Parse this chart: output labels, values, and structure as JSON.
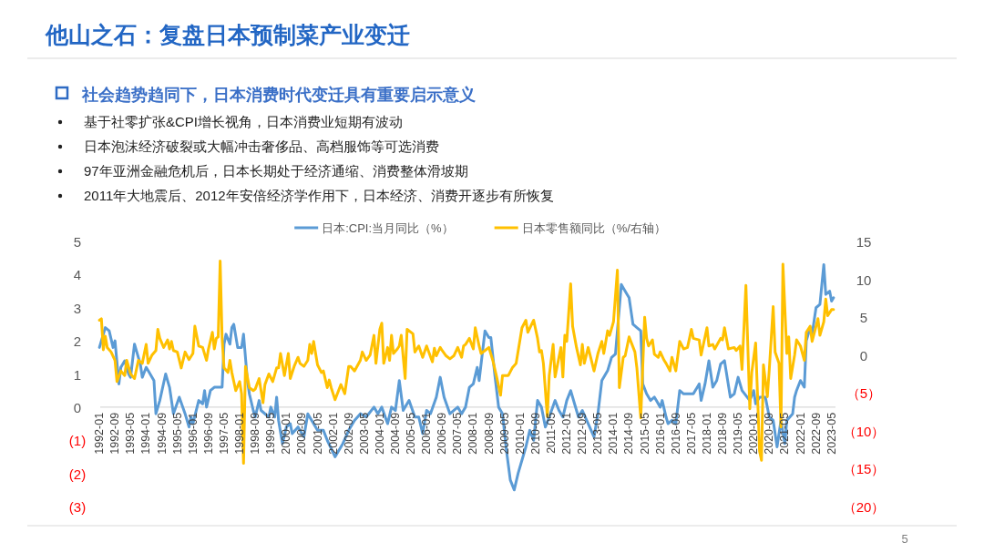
{
  "chart_data": {
    "type": "line",
    "title": "他山之石：复盘日本预制菜产业变迁",
    "subtitle": "社会趋势趋同下，日本消费时代变迁具有重要启示意义",
    "annotations": [
      "基于社零扩张&CPI增长视角，日本消费业短期有波动",
      "日本泡沫经济破裂或大幅冲击奢侈品、高档服饰等可选消费",
      "97年亚洲金融危机后，日本长期处于经济通缩、消费整体滑坡期",
      "2011年大地震后、2012年安倍经济学作用下，日本经济、消费开逐步有所恢复",
      "5"
    ],
    "legend": "top",
    "line_style": "solid",
    "xlim": [
      "1991-12",
      "2023-07"
    ],
    "xticks": [
      "1992-01",
      "1992-09",
      "1993-05",
      "1994-01",
      "1994-09",
      "1995-05",
      "1996-01",
      "1996-09",
      "1997-05",
      "1998-01",
      "1998-09",
      "1999-05",
      "2000-01",
      "2000-09",
      "2001-05",
      "2002-01",
      "2002-09",
      "2003-05",
      "2004-01",
      "2004-09",
      "2005-05",
      "2006-01",
      "2006-09",
      "2007-05",
      "2008-01",
      "2008-09",
      "2009-05",
      "2010-01",
      "2010-09",
      "2011-05",
      "2012-01",
      "2012-09",
      "2013-05",
      "2014-01",
      "2014-09",
      "2015-05",
      "2016-01",
      "2016-09",
      "2017-05",
      "2018-01",
      "2018-09",
      "2019-05",
      "2020-01",
      "2020-09",
      "2021-05",
      "2022-01",
      "2022-09",
      "2023-05"
    ],
    "ylim": [
      -3,
      5
    ],
    "yticks": [
      5,
      4,
      3,
      2,
      1,
      0,
      {
        "value": -1,
        "label": "(1)"
      },
      {
        "value": -2,
        "label": "(2)"
      },
      {
        "value": -3,
        "label": "(3)"
      }
    ],
    "y2lim": [
      -20,
      15
    ],
    "y2ticks": [
      15,
      10,
      5,
      0,
      {
        "value": -5,
        "label": "（5）"
      },
      {
        "value": -10,
        "label": "（10）"
      },
      {
        "value": -15,
        "label": "（15）"
      },
      {
        "value": -20,
        "label": "（20）"
      }
    ],
    "series": [
      {
        "name": "日本:CPI:当月同比（%）",
        "color": "#5b9bd5",
        "x": [
          "1992-01",
          "1992-04",
          "1992-06",
          "1992-08",
          "1992-09",
          "1992-11",
          "1992-12",
          "1993-02",
          "1993-04",
          "1993-05",
          "1993-07",
          "1993-09",
          "1993-10",
          "1993-11",
          "1994-01",
          "1994-02",
          "1994-05",
          "1994-06",
          "1994-08",
          "1994-11",
          "1995-01",
          "1995-03",
          "1995-06",
          "1995-09",
          "1995-11",
          "1995-12",
          "1996-01",
          "1996-04",
          "1996-06",
          "1996-07",
          "1996-08",
          "1996-10",
          "1996-12",
          "1997-03",
          "1997-04",
          "1997-05",
          "1997-06",
          "1997-08",
          "1997-09",
          "1997-10",
          "1997-12",
          "1998-02",
          "1998-03",
          "1998-05",
          "1998-06",
          "1998-08",
          "1998-09",
          "1998-11",
          "1998-12",
          "1999-04",
          "1999-05",
          "1999-07",
          "1999-08",
          "1999-09",
          "1999-11",
          "2000-01",
          "2000-03",
          "2000-04",
          "2000-07",
          "2000-10",
          "2000-12",
          "2001-02",
          "2001-05",
          "2001-08",
          "2001-10",
          "2002-02",
          "2002-06",
          "2002-09",
          "2002-12",
          "2003-03",
          "2003-06",
          "2003-10",
          "2003-12",
          "2004-02",
          "2004-05",
          "2004-07",
          "2004-09",
          "2004-11",
          "2005-01",
          "2005-04",
          "2005-07",
          "2005-09",
          "2005-11",
          "2006-01",
          "2006-03",
          "2006-06",
          "2006-08",
          "2006-10",
          "2007-01",
          "2007-05",
          "2007-07",
          "2007-09",
          "2007-11",
          "2008-01",
          "2008-03",
          "2008-04",
          "2008-07",
          "2008-09",
          "2008-10",
          "2008-12",
          "2009-02",
          "2009-04",
          "2009-06",
          "2009-08",
          "2009-10",
          "2009-12",
          "2010-04",
          "2010-06",
          "2010-08",
          "2010-10",
          "2010-12",
          "2011-02",
          "2011-04",
          "2011-07",
          "2011-09",
          "2011-11",
          "2012-01",
          "2012-03",
          "2012-05",
          "2012-07",
          "2012-09",
          "2012-12",
          "2013-03",
          "2013-05",
          "2013-07",
          "2013-10",
          "2013-12",
          "2014-02",
          "2014-05",
          "2014-06",
          "2014-08",
          "2014-09",
          "2014-11",
          "2015-01",
          "2015-03",
          "2015-04",
          "2015-06",
          "2015-08",
          "2015-10",
          "2015-11",
          "2016-01",
          "2016-02",
          "2016-04",
          "2016-05",
          "2016-07",
          "2016-09",
          "2016-11",
          "2017-01",
          "2017-04",
          "2017-06",
          "2017-09",
          "2017-10",
          "2017-12",
          "2018-02",
          "2018-04",
          "2018-06",
          "2018-08",
          "2018-10",
          "2019-01",
          "2019-03",
          "2019-05",
          "2019-07",
          "2019-11",
          "2020-01",
          "2020-02",
          "2020-04",
          "2020-07",
          "2020-09",
          "2020-11",
          "2021-01",
          "2021-03",
          "2021-05",
          "2021-06",
          "2021-09",
          "2021-10",
          "2021-11",
          "2022-01",
          "2022-03",
          "2022-04",
          "2022-06",
          "2022-07",
          "2022-09",
          "2022-11",
          "2022-12",
          "2023-01",
          "2023-02",
          "2023-04",
          "2023-05",
          "2023-06"
        ],
        "values": [
          1.8,
          2.4,
          2.3,
          1.8,
          2.0,
          0.7,
          1.2,
          1.4,
          1.0,
          0.9,
          1.9,
          1.5,
          1.3,
          0.9,
          1.2,
          1.1,
          0.8,
          -0.2,
          0.2,
          1.0,
          0.6,
          -0.2,
          0.3,
          -0.2,
          -0.6,
          -0.3,
          -0.5,
          0.2,
          0.1,
          0.5,
          0.0,
          0.5,
          0.6,
          0.6,
          0.6,
          1.9,
          2.2,
          1.9,
          2.4,
          2.5,
          1.8,
          1.8,
          2.2,
          0.8,
          0.4,
          -0.1,
          -0.3,
          0.2,
          -0.1,
          -0.3,
          0.0,
          -0.3,
          0.3,
          -0.4,
          -1.1,
          -0.6,
          -0.5,
          -0.8,
          -0.6,
          -0.9,
          -0.2,
          -0.4,
          -0.7,
          -0.7,
          -1.0,
          -1.5,
          -1.1,
          -0.7,
          -0.4,
          -0.2,
          -0.3,
          0.0,
          -0.2,
          0.0,
          -0.5,
          0.0,
          -0.1,
          0.8,
          -0.1,
          0.2,
          -0.3,
          -0.3,
          -0.8,
          -0.1,
          -0.2,
          0.3,
          0.9,
          0.3,
          -0.2,
          0.0,
          -0.2,
          0.0,
          0.6,
          0.7,
          1.2,
          0.8,
          2.3,
          2.1,
          2.1,
          1.0,
          0.0,
          -0.2,
          -1.3,
          -2.2,
          -2.5,
          -2.0,
          -1.2,
          -0.7,
          -1.0,
          0.2,
          0.0,
          -0.6,
          -0.3,
          0.2,
          -0.1,
          -0.3,
          0.2,
          0.5,
          0.1,
          -0.3,
          -0.1,
          -0.5,
          -0.9,
          -0.2,
          0.8,
          1.1,
          1.5,
          1.6,
          3.7,
          3.6,
          3.4,
          3.3,
          2.5,
          2.4,
          2.3,
          0.7,
          0.4,
          0.2,
          0.3,
          0.2,
          0.0,
          0.2,
          -0.3,
          -0.5,
          -0.4,
          -0.5,
          0.5,
          0.4,
          0.4,
          0.4,
          0.7,
          0.2,
          0.7,
          1.4,
          0.6,
          0.8,
          1.3,
          1.4,
          0.3,
          0.4,
          0.9,
          0.5,
          0.2,
          0.5,
          0.1,
          0.3,
          0.3,
          -0.3,
          -0.4,
          -1.2,
          -0.4,
          -1.1,
          -0.4,
          -0.2,
          0.3,
          0.5,
          0.8,
          0.6,
          2.0,
          2.4,
          2.2,
          3.0,
          3.1,
          3.7,
          4.3,
          3.4,
          3.5,
          3.2,
          3.3
        ]
      },
      {
        "name": "日本零售额同比（%/右轴）",
        "color": "#ffc000",
        "axis": "y2",
        "x": [
          "1992-01",
          "1992-02",
          "1992-03",
          "1992-04",
          "1992-05",
          "1992-07",
          "1992-09",
          "1992-10",
          "1992-12",
          "1993-02",
          "1993-03",
          "1993-05",
          "1993-07",
          "1993-09",
          "1993-11",
          "1994-01",
          "1994-02",
          "1994-04",
          "1994-06",
          "1994-07",
          "1994-08",
          "1994-10",
          "1994-12",
          "1995-01",
          "1995-02",
          "1995-03",
          "1995-05",
          "1995-07",
          "1995-09",
          "1995-11",
          "1996-01",
          "1996-02",
          "1996-04",
          "1996-06",
          "1996-08",
          "1996-09",
          "1996-11",
          "1996-12",
          "1997-01",
          "1997-02",
          "1997-03",
          "1997-04",
          "1997-05",
          "1997-07",
          "1997-08",
          "1997-09",
          "1997-11",
          "1998-01",
          "1998-02",
          "1998-03",
          "1998-04",
          "1998-06",
          "1998-08",
          "1998-09",
          "1998-11",
          "1999-01",
          "1999-02",
          "1999-04",
          "1999-06",
          "1999-08",
          "1999-09",
          "1999-10",
          "1999-12",
          "2000-02",
          "2000-03",
          "2000-05",
          "2000-07",
          "2000-08",
          "2000-10",
          "2000-12",
          "2001-01",
          "2001-02",
          "2001-03",
          "2001-05",
          "2001-07",
          "2001-08",
          "2001-10",
          "2001-11",
          "2001-12",
          "2002-02",
          "2002-05",
          "2002-07",
          "2002-09",
          "2002-10",
          "2002-12",
          "2003-03",
          "2003-04",
          "2003-06",
          "2003-08",
          "2003-10",
          "2003-11",
          "2004-01",
          "2004-02",
          "2004-03",
          "2004-05",
          "2004-06",
          "2004-07",
          "2004-08",
          "2004-10",
          "2004-11",
          "2004-12",
          "2005-02",
          "2005-03",
          "2005-06",
          "2005-07",
          "2005-09",
          "2005-11",
          "2006-01",
          "2006-04",
          "2006-05",
          "2006-06",
          "2006-08",
          "2006-09",
          "2006-11",
          "2007-01",
          "2007-03",
          "2007-05",
          "2007-07",
          "2007-08",
          "2007-09",
          "2007-11",
          "2008-01",
          "2008-02",
          "2008-04",
          "2008-05",
          "2008-07",
          "2008-09",
          "2008-11",
          "2009-01",
          "2009-03",
          "2009-04",
          "2009-07",
          "2009-09",
          "2009-11",
          "2010-02",
          "2010-04",
          "2010-05",
          "2010-08",
          "2010-10",
          "2010-11",
          "2010-12",
          "2011-01",
          "2011-03",
          "2011-04",
          "2011-06",
          "2011-07",
          "2011-10",
          "2011-11",
          "2011-12",
          "2012-01",
          "2012-03",
          "2012-04",
          "2012-06",
          "2012-08",
          "2012-09",
          "2012-10",
          "2012-12",
          "2013-03",
          "2013-05",
          "2013-07",
          "2013-08",
          "2013-10",
          "2013-11",
          "2014-01",
          "2014-03",
          "2014-04",
          "2014-06",
          "2014-07",
          "2014-09",
          "2014-12",
          "2015-01",
          "2015-03",
          "2015-05",
          "2015-06",
          "2015-07",
          "2015-09",
          "2015-10",
          "2015-12",
          "2016-01",
          "2016-03",
          "2016-04",
          "2016-06",
          "2016-07",
          "2016-09",
          "2016-11",
          "2017-01",
          "2017-03",
          "2017-05",
          "2017-06",
          "2017-09",
          "2017-10",
          "2018-01",
          "2018-02",
          "2018-04",
          "2018-05",
          "2018-08",
          "2018-09",
          "2018-10",
          "2018-12",
          "2019-03",
          "2019-04",
          "2019-06",
          "2019-07",
          "2019-09",
          "2019-11",
          "2019-12",
          "2020-02",
          "2020-04",
          "2020-05",
          "2020-06",
          "2020-08",
          "2020-09",
          "2020-11",
          "2020-12",
          "2021-02",
          "2021-03",
          "2021-04",
          "2021-06",
          "2021-07",
          "2021-08",
          "2021-10",
          "2021-11",
          "2022-01",
          "2022-03",
          "2022-04",
          "2022-06",
          "2022-07",
          "2022-10",
          "2022-11",
          "2023-01",
          "2023-02",
          "2023-03",
          "2023-05",
          "2023-06"
        ],
        "values": [
          4.6,
          4.8,
          0.7,
          2.5,
          1.0,
          0.4,
          -0.7,
          -3.5,
          -2.1,
          -2.7,
          -0.7,
          -2.5,
          -3.1,
          -0.7,
          -1.1,
          1.4,
          -1.1,
          0.0,
          0.6,
          3.4,
          2.2,
          1.0,
          2.0,
          0.8,
          1.8,
          0.6,
          0.4,
          -1.7,
          0.4,
          -0.6,
          0.2,
          3.8,
          1.2,
          1.0,
          -0.7,
          0.8,
          3.0,
          0.8,
          2.2,
          2.4,
          12.4,
          2.2,
          -1.7,
          -2.3,
          -0.7,
          -2.3,
          -4.7,
          -3.5,
          -5.1,
          -14.3,
          -1.5,
          -4.3,
          -4.7,
          -4.5,
          -3.1,
          -6.3,
          -3.9,
          -2.5,
          -3.5,
          -1.7,
          -1.7,
          0.2,
          -2.7,
          0.2,
          -3.1,
          -1.5,
          -0.3,
          -1.1,
          -1.5,
          -0.7,
          1.4,
          0.2,
          1.8,
          -1.3,
          -2.3,
          -2.1,
          -4.3,
          -3.3,
          -4.3,
          -5.9,
          -3.9,
          -5.1,
          -1.5,
          -1.5,
          -2.1,
          -0.7,
          0.4,
          -0.7,
          0.0,
          2.6,
          -1.1,
          3.4,
          4.2,
          -1.1,
          1.0,
          -0.7,
          2.6,
          0.2,
          0.8,
          1.2,
          2.6,
          -3.1,
          3.4,
          2.8,
          0.4,
          1.2,
          -0.3,
          1.2,
          -0.9,
          0.9,
          -0.1,
          1.0,
          0.6,
          -0.1,
          -0.5,
          -0.1,
          1.0,
          -0.3,
          1.2,
          1.4,
          2.2,
          0.8,
          3.6,
          1.2,
          0.2,
          0.6,
          1.0,
          -0.7,
          -2.9,
          -5.3,
          -2.7,
          -2.7,
          -1.7,
          -1.1,
          3.6,
          4.6,
          3.0,
          4.6,
          2.2,
          0.4,
          0.6,
          -1.1,
          -8.1,
          -2.7,
          1.4,
          -2.9,
          1.0,
          -2.9,
          2.6,
          1.8,
          9.4,
          3.8,
          1.0,
          -1.3,
          1.4,
          -1.1,
          1.0,
          -2.1,
          0.2,
          1.8,
          0.2,
          3.2,
          2.6,
          4.4,
          11.2,
          -4.3,
          -0.3,
          -0.1,
          2.4,
          0.4,
          -1.7,
          -8.3,
          5.0,
          2.2,
          1.2,
          2.0,
          0.1,
          -0.3,
          0.4,
          -0.7,
          -1.1,
          -2.1,
          -0.3,
          -2.1,
          1.8,
          0.8,
          1.0,
          3.4,
          2.2,
          2.0,
          0.0,
          3.6,
          1.2,
          1.4,
          0.8,
          2.2,
          2.0,
          3.6,
          0.8,
          1.0,
          0.6,
          1.2,
          -1.9,
          9.2,
          -7.1,
          -2.3,
          1.6,
          -12.7,
          -13.9,
          -1.3,
          -5.5,
          -1.9,
          6.4,
          0.4,
          -1.1,
          -9.5,
          12.0,
          0.2,
          2.4,
          -3.1,
          0.0,
          2.0,
          1.2,
          -0.7,
          3.0,
          3.8,
          1.8,
          4.8,
          2.6,
          4.4,
          7.4,
          5.2,
          6.0,
          6.0
        ]
      }
    ]
  }
}
